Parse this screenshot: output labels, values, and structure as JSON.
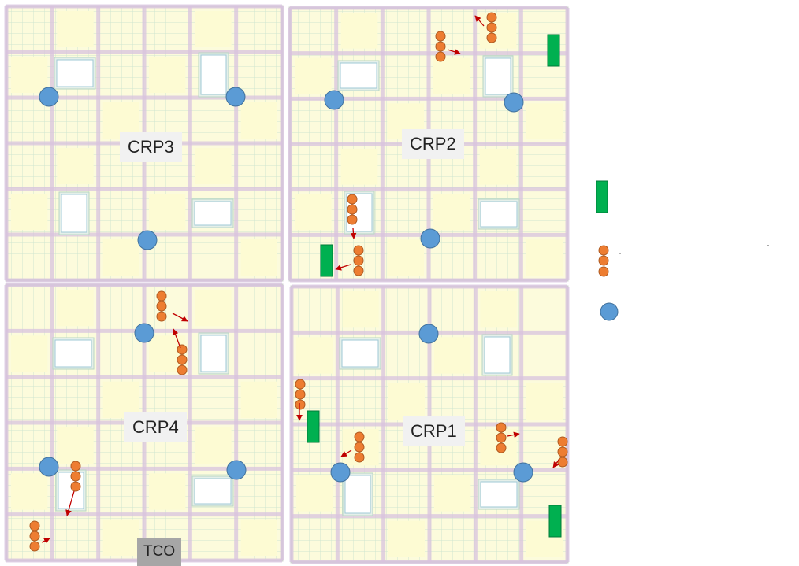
{
  "panels": [
    {
      "id": "crp3",
      "label": "CRP3"
    },
    {
      "id": "crp2",
      "label": "CRP2"
    },
    {
      "id": "crp4",
      "label": "CRP4"
    },
    {
      "id": "crp1",
      "label": "CRP1"
    }
  ],
  "tco_label": "TCO",
  "legend": {
    "items": [
      {
        "symbol": "green-rectangle",
        "text": ""
      },
      {
        "symbol": "orange-dots",
        "text": ""
      },
      {
        "symbol": "blue-circle",
        "text": ""
      }
    ]
  },
  "colors": {
    "panel_fill": "#fcfbdc",
    "grid_line": "#d9c3df",
    "grid_green": "#cfe6cf",
    "blue_circle": "#5b9bd5",
    "orange_dot": "#ed7d31",
    "green_rect": "#00b050",
    "arrow": "#c00000"
  }
}
